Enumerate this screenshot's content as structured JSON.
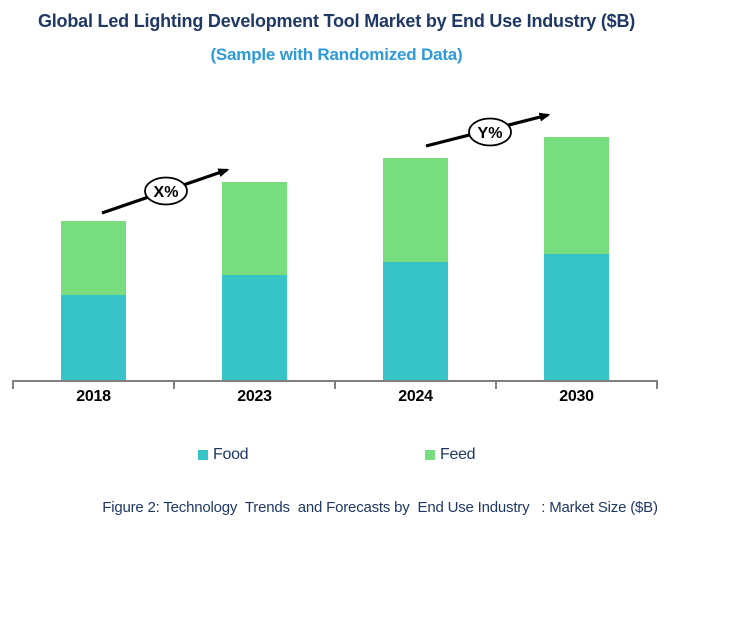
{
  "header": {
    "title": "Global Led Lighting Development Tool Market by End Use Industry ($B)",
    "subtitle": "(Sample with Randomized Data)"
  },
  "chart_data": {
    "type": "bar",
    "stacked": true,
    "categories": [
      "2018",
      "2023",
      "2024",
      "2030"
    ],
    "series": [
      {
        "name": "Food",
        "color": "#37C4C9",
        "values": [
          8.5,
          10.5,
          11.8,
          12.6
        ]
      },
      {
        "name": "Feed",
        "color": "#77DD7F",
        "values": [
          7.4,
          9.3,
          10.4,
          11.7
        ]
      }
    ],
    "title": "Global Led Lighting Development Tool Market by End Use Industry ($B)",
    "subtitle": "(Sample with Randomized Data)",
    "xlabel": "",
    "ylabel": "",
    "units": "$B",
    "y_axis_visible": false,
    "grid": false,
    "legend_position": "bottom",
    "annotations": [
      {
        "label": "X%",
        "meaning": "growth arrow between 2018 and 2023"
      },
      {
        "label": "Y%",
        "meaning": "growth arrow between 2024 and 2030"
      }
    ]
  },
  "legend": {
    "items": [
      {
        "label": "Food",
        "color": "#37C4C9"
      },
      {
        "label": "Feed",
        "color": "#77DD7F"
      }
    ]
  },
  "caption": "Figure 2: Technology  Trends  and Forecasts by  End Use Industry   : Market Size ($B)",
  "colors": {
    "title": "#1F3864",
    "subtitle": "#2E9AD8",
    "axis": "#808080",
    "annotation_stroke": "#000000"
  }
}
